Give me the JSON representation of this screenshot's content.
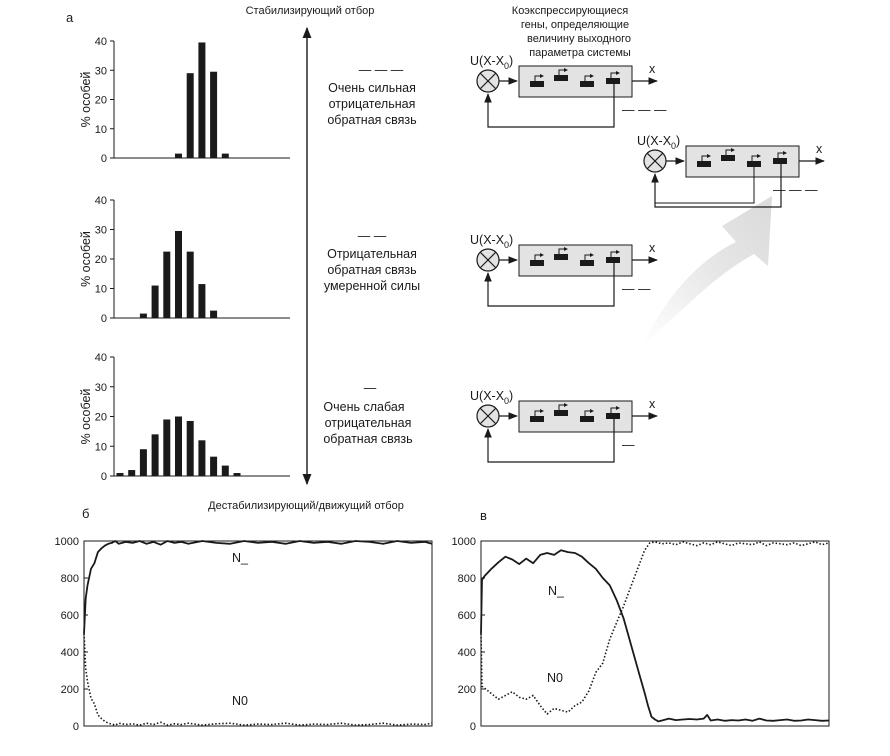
{
  "panel_labels": {
    "a": "а",
    "b": "б",
    "c": "в"
  },
  "axis_titles": {
    "top": "Стабилизирующий отбор",
    "bottom": "Дестабилизирующий/движущий отбор"
  },
  "genes_header": [
    "Коэкспрессирующиеся",
    "гены, определяющие",
    "величину выходного",
    "параметра системы"
  ],
  "feedback": [
    {
      "dash": "— — —",
      "lines": [
        "Очень сильная",
        "отрицательная",
        "обратная связь"
      ]
    },
    {
      "dash": "— —",
      "lines": [
        "Отрицательная",
        "обратная связь",
        "умеренной силы"
      ]
    },
    {
      "dash": "—",
      "lines": [
        "Очень слабая",
        "отрицательная",
        "обратная связь"
      ]
    }
  ],
  "circuit": {
    "input_main": "U(X-X",
    "input_sub": "0",
    "input_close": ")",
    "output": "x",
    "loop_marks": [
      "— — —",
      "— —",
      "—",
      "— — —"
    ]
  },
  "chart_data": [
    {
      "id": "hist-strong",
      "type": "bar",
      "ylabel": "% особей",
      "ylim": [
        0,
        40
      ],
      "yticks": [
        0,
        10,
        20,
        30,
        40
      ],
      "values": [
        0,
        0,
        0,
        0,
        0,
        1.5,
        29,
        39.5,
        29.5,
        1.5,
        0,
        0,
        0,
        0,
        0
      ]
    },
    {
      "id": "hist-moderate",
      "type": "bar",
      "ylabel": "% особей",
      "ylim": [
        0,
        40
      ],
      "yticks": [
        0,
        10,
        20,
        30,
        40
      ],
      "values": [
        0,
        0,
        1.5,
        11,
        22.5,
        29.5,
        22.5,
        11.5,
        2.5,
        0,
        0,
        0,
        0,
        0,
        0
      ]
    },
    {
      "id": "hist-weak",
      "type": "bar",
      "ylabel": "% особей",
      "ylim": [
        0,
        40
      ],
      "yticks": [
        0,
        10,
        20,
        30,
        40
      ],
      "values": [
        1,
        2,
        9,
        14,
        19,
        20,
        18.5,
        12,
        6.5,
        3.5,
        1,
        0,
        0,
        0,
        0
      ]
    },
    {
      "id": "time-b",
      "type": "line",
      "ylim": [
        0,
        1000
      ],
      "yticks": [
        0,
        200,
        400,
        600,
        800,
        1000
      ],
      "xlim": [
        0,
        100
      ],
      "series": [
        {
          "name": "N_",
          "style": "solid",
          "x": [
            0,
            0.5,
            1,
            2,
            3,
            4,
            5,
            6,
            7,
            8,
            9,
            10,
            12,
            14,
            16,
            18,
            20,
            22,
            24,
            26,
            28,
            30,
            34,
            38,
            42,
            46,
            50,
            54,
            58,
            62,
            66,
            70,
            74,
            78,
            82,
            86,
            90,
            94,
            98,
            100
          ],
          "y": [
            500,
            690,
            760,
            850,
            880,
            940,
            960,
            975,
            985,
            990,
            1000,
            985,
            995,
            990,
            1000,
            985,
            995,
            980,
            1000,
            990,
            995,
            985,
            1000,
            990,
            985,
            1000,
            990,
            995,
            985,
            1000,
            990,
            995,
            985,
            1000,
            995,
            985,
            1000,
            990,
            995,
            985
          ]
        },
        {
          "name": "N0",
          "style": "dotted",
          "x": [
            0,
            0.5,
            1,
            2,
            3,
            4,
            5,
            6,
            7,
            8,
            9,
            10,
            12,
            14,
            16,
            18,
            20,
            22,
            24,
            26,
            28,
            30,
            34,
            38,
            42,
            46,
            50,
            54,
            58,
            62,
            66,
            70,
            74,
            78,
            82,
            86,
            90,
            94,
            98,
            100
          ],
          "y": [
            500,
            310,
            240,
            150,
            120,
            60,
            40,
            25,
            15,
            10,
            5,
            15,
            8,
            12,
            5,
            15,
            8,
            20,
            5,
            12,
            8,
            15,
            5,
            12,
            15,
            5,
            10,
            8,
            15,
            5,
            10,
            8,
            15,
            5,
            8,
            15,
            5,
            10,
            8,
            15
          ]
        }
      ]
    },
    {
      "id": "time-c",
      "type": "line",
      "ylim": [
        0,
        1000
      ],
      "yticks": [
        0,
        200,
        400,
        600,
        800,
        1000
      ],
      "xlim": [
        0,
        100
      ],
      "series": [
        {
          "name": "N_",
          "style": "solid",
          "x": [
            0,
            0.3,
            1,
            3,
            5,
            7,
            9,
            11,
            13,
            15,
            17,
            19,
            21,
            23,
            25,
            27,
            29,
            31,
            33,
            35,
            37,
            39,
            41,
            42.5,
            44,
            45.5,
            47,
            48,
            49,
            50,
            51,
            52,
            54,
            56,
            58,
            60,
            62,
            64,
            65,
            66,
            68,
            70,
            72,
            74,
            76,
            78,
            80,
            82,
            84,
            86,
            88,
            90,
            92,
            94,
            96,
            98,
            100
          ],
          "y": [
            500,
            790,
            810,
            850,
            885,
            915,
            900,
            875,
            905,
            880,
            925,
            935,
            925,
            950,
            940,
            935,
            915,
            880,
            850,
            800,
            760,
            680,
            580,
            480,
            380,
            280,
            180,
            110,
            50,
            35,
            25,
            30,
            40,
            32,
            35,
            38,
            35,
            40,
            60,
            30,
            35,
            28,
            32,
            30,
            35,
            28,
            40,
            30,
            28,
            32,
            35,
            28,
            30,
            35,
            32,
            28,
            30
          ]
        },
        {
          "name": "N0",
          "style": "dotted",
          "x": [
            0,
            0.3,
            1,
            3,
            5,
            7,
            9,
            11,
            13,
            15,
            17,
            19,
            21,
            23,
            25,
            27,
            29,
            31,
            33,
            35,
            37,
            39,
            41,
            43,
            45,
            47,
            48.5,
            50,
            52,
            54,
            56,
            58,
            60,
            62,
            64,
            66,
            68,
            70,
            72,
            74,
            76,
            78,
            80,
            82,
            84,
            86,
            88,
            90,
            92,
            94,
            96,
            98,
            100
          ],
          "y": [
            500,
            215,
            205,
            175,
            145,
            165,
            185,
            155,
            145,
            165,
            110,
            65,
            95,
            85,
            75,
            110,
            130,
            190,
            290,
            340,
            470,
            560,
            650,
            750,
            850,
            950,
            990,
            995,
            985,
            990,
            980,
            995,
            985,
            975,
            990,
            980,
            995,
            985,
            975,
            990,
            985,
            980,
            995,
            975,
            990,
            985,
            980,
            990,
            975,
            985,
            995,
            980,
            990
          ]
        }
      ]
    }
  ]
}
